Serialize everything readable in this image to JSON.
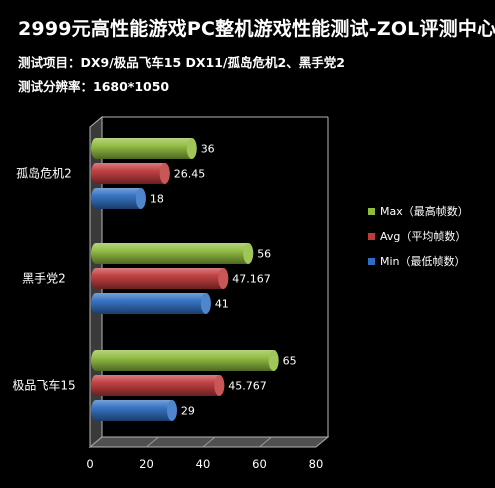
{
  "header": {
    "title": "2999元高性能游戏PC整机游戏性能测试-ZOL评测中心",
    "subtitle1": "测试项目：DX9/极品飞车15  DX11/孤岛危机2、黑手党2",
    "subtitle2": "测试分辨率：1680*1050"
  },
  "colors": {
    "max": "#8fbc3c",
    "avg": "#c0393b",
    "min": "#2f6fc2"
  },
  "chart_data": {
    "type": "bar",
    "orientation": "horizontal",
    "categories": [
      "孤岛危机2",
      "黑手党2",
      "极品飞车15"
    ],
    "series": [
      {
        "name": "Max（最高帧数）",
        "values": [
          36,
          56,
          65
        ],
        "labels": [
          "36",
          "56",
          "65"
        ]
      },
      {
        "name": "Avg（平均帧数）",
        "values": [
          26.45,
          47.167,
          45.767
        ],
        "labels": [
          "26.45",
          "47.167",
          "45.767"
        ]
      },
      {
        "name": "Min（最低帧数）",
        "values": [
          18,
          41,
          29
        ],
        "labels": [
          "18",
          "41",
          "29"
        ]
      }
    ],
    "xlim": [
      0,
      80
    ],
    "ticks": [
      "0",
      "20",
      "40",
      "60",
      "80"
    ],
    "legend_position": "right",
    "style": "3d-cylinder"
  }
}
